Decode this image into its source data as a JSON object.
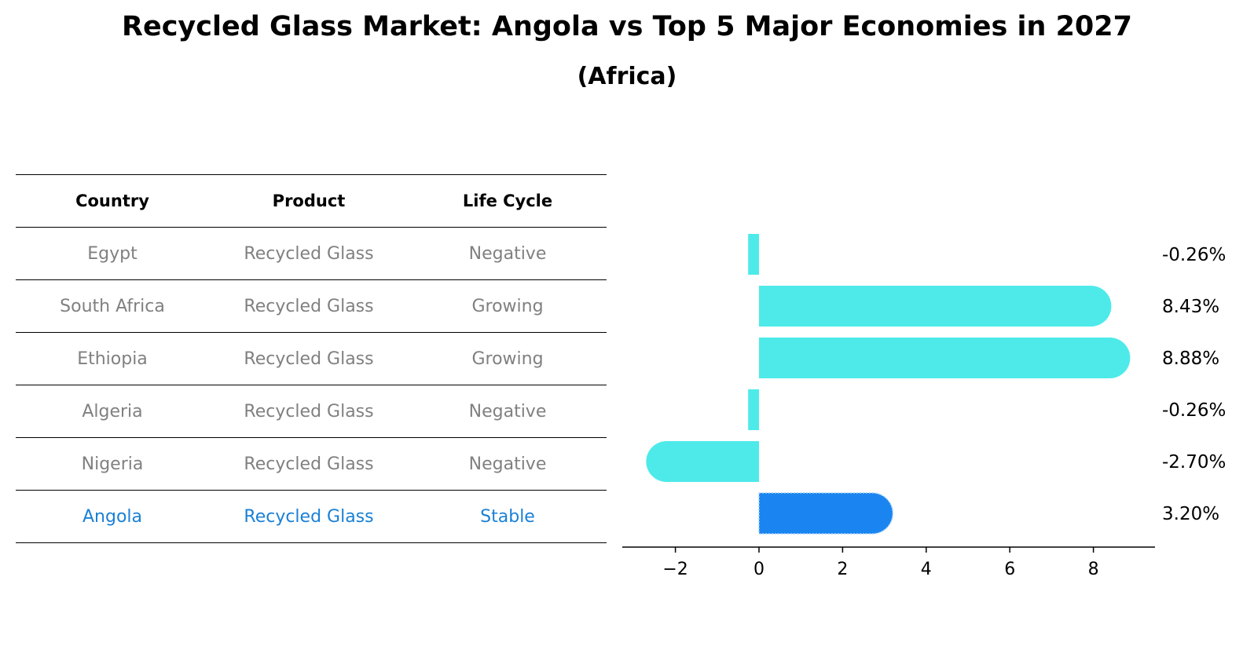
{
  "title": "Recycled Glass Market: Angola vs Top 5 Major Economies in 2027",
  "subtitle": "(Africa)",
  "table": {
    "headers": [
      "Country",
      "Product",
      "Life Cycle"
    ],
    "rows": [
      {
        "country": "Egypt",
        "product": "Recycled Glass",
        "life_cycle": "Negative",
        "highlight": false
      },
      {
        "country": "South Africa",
        "product": "Recycled Glass",
        "life_cycle": "Growing",
        "highlight": false
      },
      {
        "country": "Ethiopia",
        "product": "Recycled Glass",
        "life_cycle": "Growing",
        "highlight": false
      },
      {
        "country": "Algeria",
        "product": "Recycled Glass",
        "life_cycle": "Negative",
        "highlight": false
      },
      {
        "country": "Nigeria",
        "product": "Recycled Glass",
        "life_cycle": "Negative",
        "highlight": false
      },
      {
        "country": "Angola",
        "product": "Recycled Glass",
        "life_cycle": "Stable",
        "highlight": true
      }
    ]
  },
  "colors": {
    "bar": "#4eeaea",
    "highlight_bar": "#1a85f0",
    "table_text": "#808080",
    "highlight_text": "#1a80d6"
  },
  "chart_data": {
    "type": "bar",
    "orientation": "horizontal",
    "categories": [
      "Egypt",
      "South Africa",
      "Ethiopia",
      "Algeria",
      "Nigeria",
      "Angola"
    ],
    "values": [
      -0.26,
      8.43,
      8.88,
      -0.26,
      -2.7,
      3.2
    ],
    "value_labels": [
      "-0.26%",
      "8.43%",
      "8.88%",
      "-0.26%",
      "-2.70%",
      "3.20%"
    ],
    "highlight_index": 5,
    "xticks": [
      -2,
      0,
      2,
      4,
      6,
      8
    ],
    "xtick_labels": [
      "−2",
      "0",
      "2",
      "4",
      "6",
      "8"
    ],
    "xlim": [
      -3.3,
      9.5
    ],
    "grid": false
  }
}
